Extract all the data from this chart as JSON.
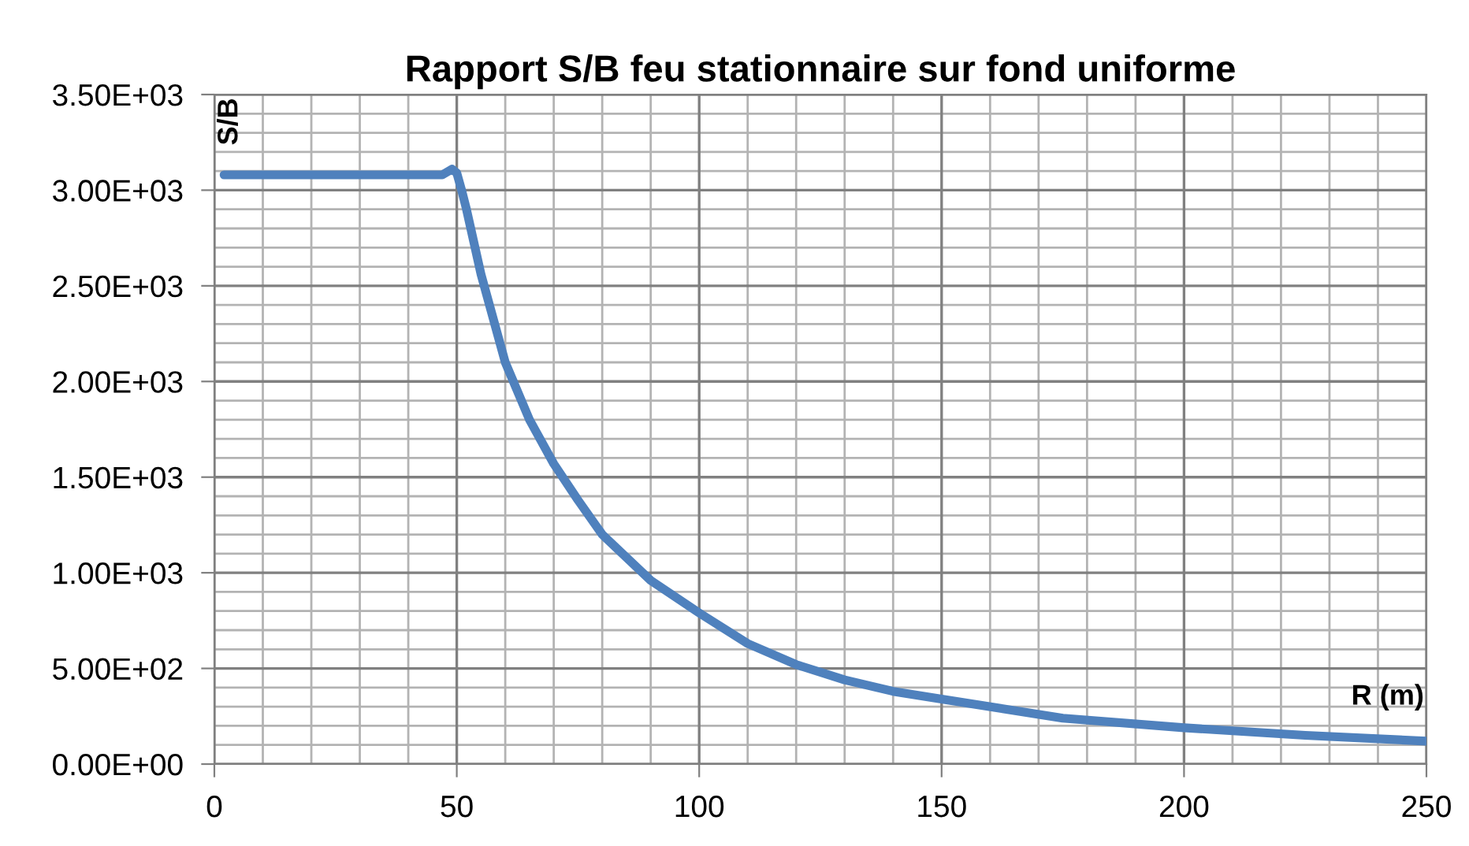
{
  "chart_data": {
    "type": "line",
    "title": "Rapport S/B feu stationnaire sur fond uniforme",
    "xlabel": "R (m)",
    "ylabel": "S/B",
    "x": [
      2,
      10,
      20,
      30,
      40,
      45,
      47,
      49,
      50,
      51,
      52,
      55,
      60,
      65,
      70,
      75,
      80,
      90,
      100,
      110,
      120,
      130,
      140,
      150,
      175,
      200,
      225,
      250
    ],
    "series": [
      {
        "color": "#4f81bd",
        "values": [
          3080,
          3080,
          3080,
          3080,
          3080,
          3080,
          3080,
          3110,
          3090,
          3000,
          2900,
          2560,
          2100,
          1800,
          1570,
          1380,
          1200,
          960,
          790,
          630,
          520,
          440,
          380,
          340,
          240,
          190,
          150,
          120
        ]
      }
    ],
    "xlim": [
      0,
      250
    ],
    "xticks": [
      0,
      50,
      100,
      150,
      200,
      250
    ],
    "ylim": [
      0,
      3500
    ],
    "yticks": [
      {
        "value": 0,
        "label": "0.00E+00"
      },
      {
        "value": 500,
        "label": "5.00E+02"
      },
      {
        "value": 1000,
        "label": "1.00E+03"
      },
      {
        "value": 1500,
        "label": "1.50E+03"
      },
      {
        "value": 2000,
        "label": "2.00E+03"
      },
      {
        "value": 2500,
        "label": "2.50E+03"
      },
      {
        "value": 3000,
        "label": "3.00E+03"
      },
      {
        "value": 3500,
        "label": "3.50E+03"
      }
    ],
    "grid": true,
    "marker": "none",
    "line_style": "solid"
  }
}
